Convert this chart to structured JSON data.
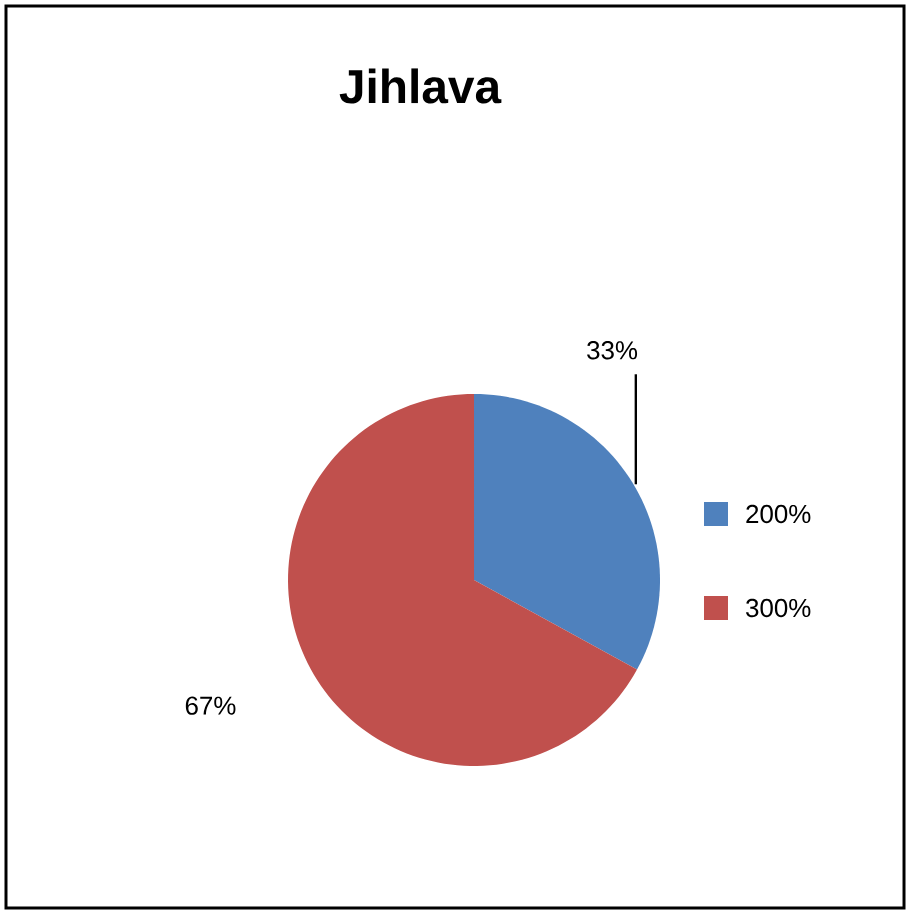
{
  "chart_data": {
    "type": "pie",
    "title": "Jihlava",
    "categories": [
      "200%",
      "300%"
    ],
    "values": [
      33,
      67
    ],
    "value_labels": [
      "33%",
      "67%"
    ],
    "colors": [
      "#4f81bd",
      "#c0504d"
    ],
    "legend": "right"
  }
}
